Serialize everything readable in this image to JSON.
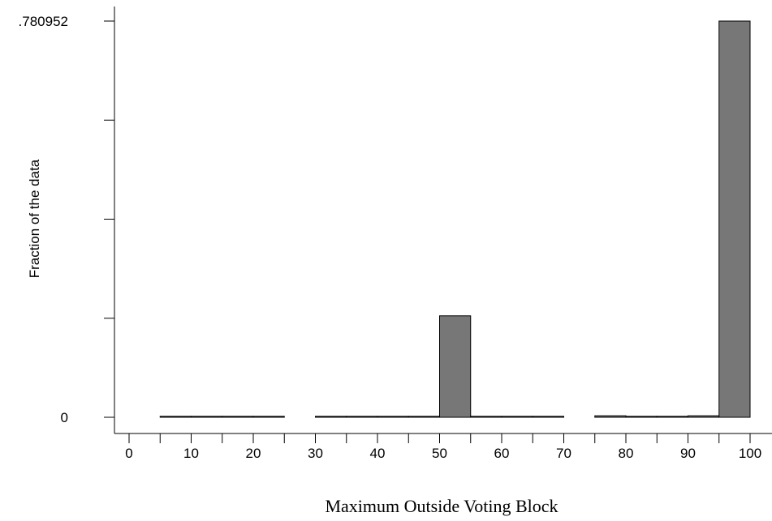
{
  "chart_data": {
    "type": "bar",
    "xlabel": "Maximum Outside Voting Block",
    "ylabel": "Fraction of the data",
    "ylim": [
      0,
      0.780952
    ],
    "xlim": [
      0,
      100
    ],
    "y_tick_labels": [
      ".780952",
      "0"
    ],
    "y_tick_values": [
      0.780952,
      0.585714,
      0.390476,
      0.195238,
      0
    ],
    "x_tick_labels": [
      "0",
      "10",
      "20",
      "30",
      "40",
      "50",
      "60",
      "70",
      "80",
      "90",
      "100"
    ],
    "x_tick_values": [
      0,
      10,
      20,
      30,
      40,
      50,
      60,
      70,
      80,
      90,
      100
    ],
    "bin_edges": [
      5,
      10,
      15,
      20,
      25,
      30,
      35,
      40,
      45,
      50,
      55,
      60,
      65,
      70,
      75,
      80,
      85,
      90,
      95,
      100,
      105
    ],
    "values": [
      0.002,
      0.002,
      0.002,
      0.002,
      0,
      0.002,
      0.002,
      0.002,
      0.002,
      0.2,
      0.002,
      0.002,
      0.002,
      0,
      0.003,
      0.002,
      0.002,
      0.003,
      0.780952,
      0
    ],
    "grid": false,
    "legend": "none"
  }
}
